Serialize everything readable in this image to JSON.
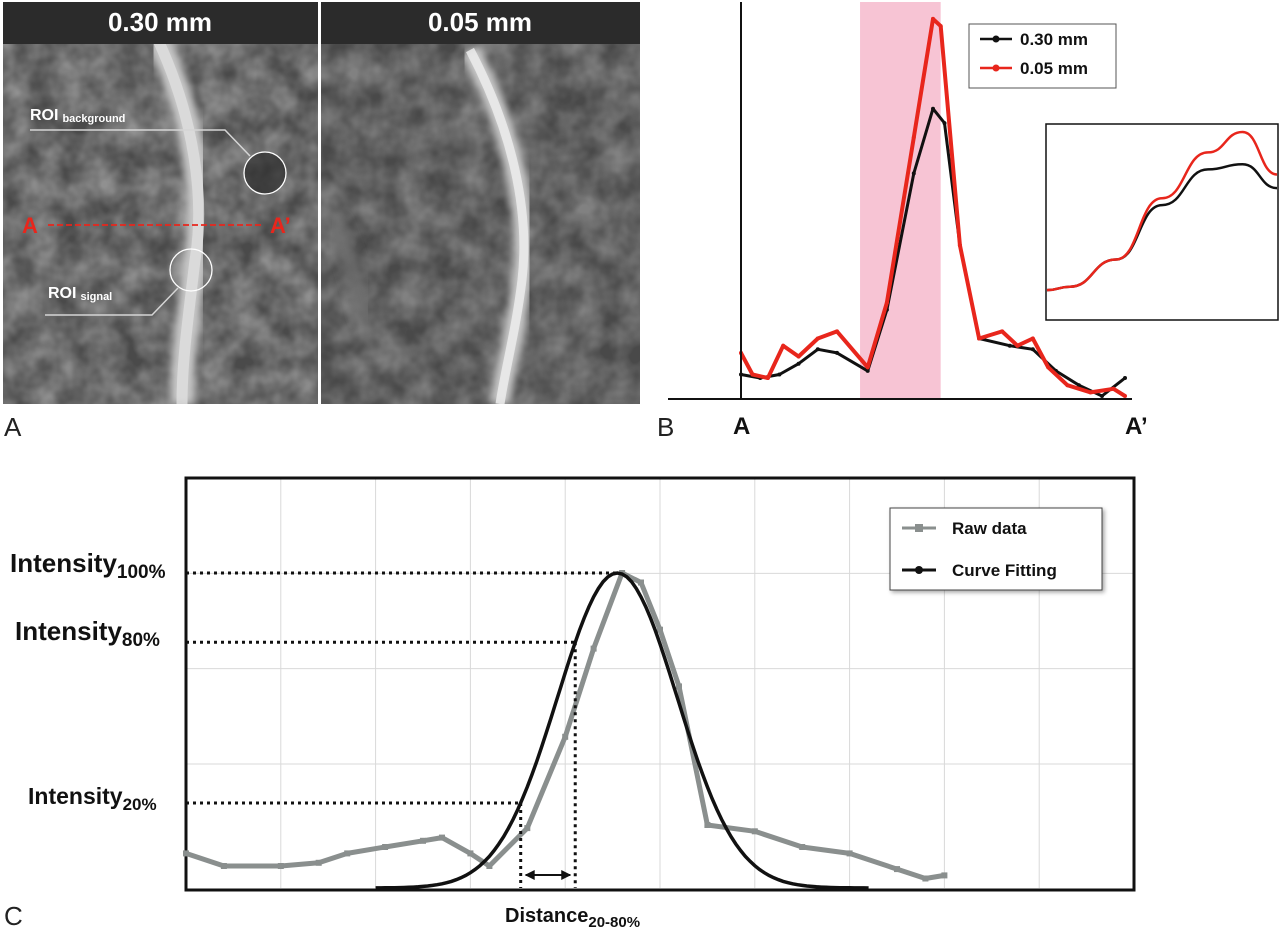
{
  "panels": {
    "a": {
      "letter": "A",
      "left_header": "0.30 mm",
      "right_header": "0.05 mm",
      "roi_background_main": "ROI",
      "roi_background_sub": "background",
      "roi_signal_main": "ROI",
      "roi_signal_sub": "signal",
      "line_start": "A",
      "line_end": "A’"
    },
    "b": {
      "letter": "B"
    },
    "c": {
      "letter": "C"
    }
  },
  "colors": {
    "series_030": "#111111",
    "series_005": "#e8261c",
    "highlight": "#f7c4d4",
    "raw": "#8a8f8e",
    "fit": "#111111"
  },
  "chart_data": [
    {
      "type": "line",
      "x_start_label": "A",
      "x_end_label": "A’",
      "xlim": [
        0,
        100
      ],
      "ylim": [
        0,
        100
      ],
      "highlight_band": [
        31,
        52
      ],
      "legend_position": "top-right",
      "series": [
        {
          "name": "0.30 mm",
          "color": "#111111",
          "points": [
            [
              0,
              6
            ],
            [
              5,
              5
            ],
            [
              10,
              6
            ],
            [
              15,
              9
            ],
            [
              20,
              13
            ],
            [
              25,
              12
            ],
            [
              33,
              7
            ],
            [
              38,
              24
            ],
            [
              45,
              62
            ],
            [
              50,
              80
            ],
            [
              53,
              76
            ],
            [
              57,
              42
            ],
            [
              62,
              16
            ],
            [
              70,
              14
            ],
            [
              76,
              13
            ],
            [
              82,
              7
            ],
            [
              88,
              3
            ],
            [
              94,
              0
            ],
            [
              100,
              5
            ]
          ]
        },
        {
          "name": "0.05 mm",
          "color": "#e8261c",
          "points": [
            [
              0,
              12
            ],
            [
              3,
              6
            ],
            [
              7,
              5
            ],
            [
              11,
              14
            ],
            [
              15,
              11
            ],
            [
              20,
              16
            ],
            [
              25,
              18
            ],
            [
              33,
              8
            ],
            [
              38,
              26
            ],
            [
              45,
              72
            ],
            [
              50,
              105
            ],
            [
              52,
              103
            ],
            [
              57,
              42
            ],
            [
              62,
              16
            ],
            [
              68,
              18
            ],
            [
              72,
              14
            ],
            [
              76,
              16
            ],
            [
              80,
              8
            ],
            [
              85,
              3
            ],
            [
              91,
              1
            ],
            [
              97,
              2
            ],
            [
              100,
              0
            ]
          ]
        }
      ],
      "inset": {
        "series": [
          {
            "name": "0.30 mm",
            "points": [
              [
                0,
                7
              ],
              [
                10,
                9
              ],
              [
                30,
                25
              ],
              [
                50,
                57
              ],
              [
                70,
                78
              ],
              [
                85,
                81
              ],
              [
                100,
                67
              ]
            ]
          },
          {
            "name": "0.05 mm",
            "points": [
              [
                0,
                7
              ],
              [
                10,
                9
              ],
              [
                30,
                25
              ],
              [
                50,
                61
              ],
              [
                70,
                88
              ],
              [
                85,
                100
              ],
              [
                100,
                75
              ]
            ]
          }
        ]
      }
    },
    {
      "type": "line",
      "xlim": [
        0,
        100
      ],
      "ylim": [
        0,
        100
      ],
      "legend_position": "top-right",
      "legend": [
        "Raw data",
        "Curve Fitting"
      ],
      "annotations": {
        "intensity_100": {
          "label": "Intensity",
          "sub": "100%",
          "y": 100
        },
        "intensity_80": {
          "label": "Intensity",
          "sub": "80%",
          "y": 78
        },
        "intensity_20": {
          "label": "Intensity",
          "sub": "20%",
          "y": 27
        },
        "distance": {
          "label": "Distance",
          "sub": "20-80%"
        }
      },
      "series": [
        {
          "name": "Raw data",
          "color": "#8a8f8e",
          "points": [
            [
              0,
              11
            ],
            [
              4,
              7
            ],
            [
              10,
              7
            ],
            [
              14,
              8
            ],
            [
              17,
              11
            ],
            [
              21,
              13
            ],
            [
              25,
              15
            ],
            [
              27,
              16
            ],
            [
              30,
              11
            ],
            [
              32,
              7
            ],
            [
              36,
              19
            ],
            [
              40,
              48
            ],
            [
              43,
              76
            ],
            [
              46,
              100
            ],
            [
              48,
              97
            ],
            [
              50,
              82
            ],
            [
              52,
              64
            ],
            [
              55,
              20
            ],
            [
              60,
              18
            ],
            [
              65,
              13
            ],
            [
              70,
              11
            ],
            [
              75,
              6
            ],
            [
              78,
              3
            ],
            [
              80,
              4
            ]
          ]
        },
        {
          "name": "Curve Fitting",
          "color": "#111111",
          "peak_x": 45.5,
          "sigma": 6.3,
          "amplitude": 100
        }
      ]
    }
  ]
}
